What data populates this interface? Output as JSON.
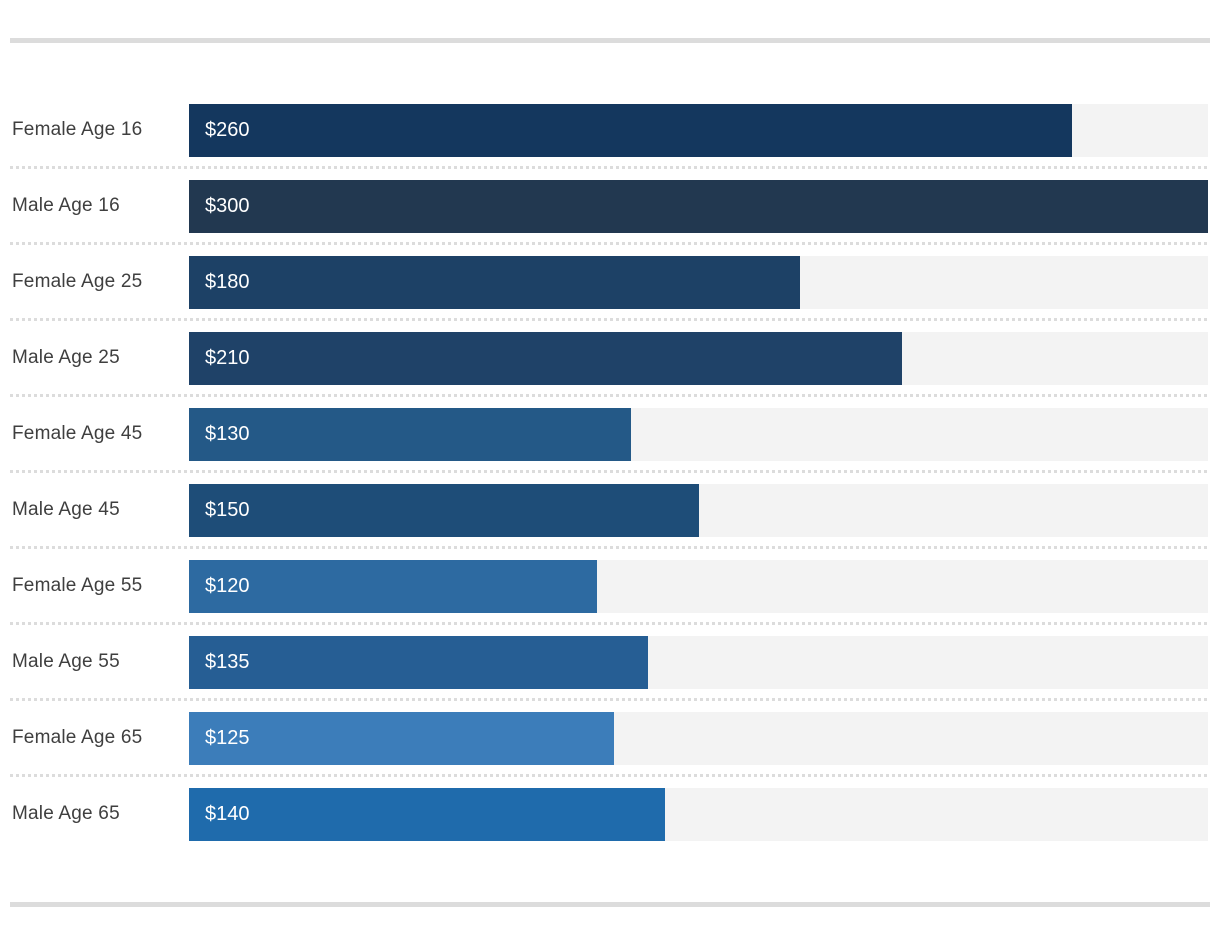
{
  "chart_data": {
    "type": "bar",
    "orientation": "horizontal",
    "title": "",
    "xlabel": "",
    "ylabel": "",
    "categories": [
      "Female Age 16",
      "Male Age 16",
      "Female Age 25",
      "Male Age 25",
      "Female Age 45",
      "Male Age 45",
      "Female Age 55",
      "Male Age 55",
      "Female Age 65",
      "Male Age 65"
    ],
    "values": [
      260,
      300,
      180,
      210,
      130,
      150,
      120,
      135,
      125,
      140
    ],
    "data_labels": [
      "$260",
      "$300",
      "$180",
      "$210",
      "$130",
      "$150",
      "$120",
      "$135",
      "$125",
      "$140"
    ],
    "xlim": [
      0,
      300
    ],
    "grid": false,
    "legend": false,
    "bar_colors": [
      "#14375e",
      "#223850",
      "#1d4166",
      "#1f4268",
      "#245987",
      "#1e4d78",
      "#2d6aa1",
      "#265e94",
      "#3c7dba",
      "#1f6bac"
    ],
    "track_color": "#f3f3f3"
  },
  "style_colors": {
    "divider": "#dcdcdc",
    "row_separator_dots": "#dcdcdc",
    "category_label_text": "#3f3f3f",
    "value_label_text": "#ffffff",
    "background": "#ffffff"
  }
}
